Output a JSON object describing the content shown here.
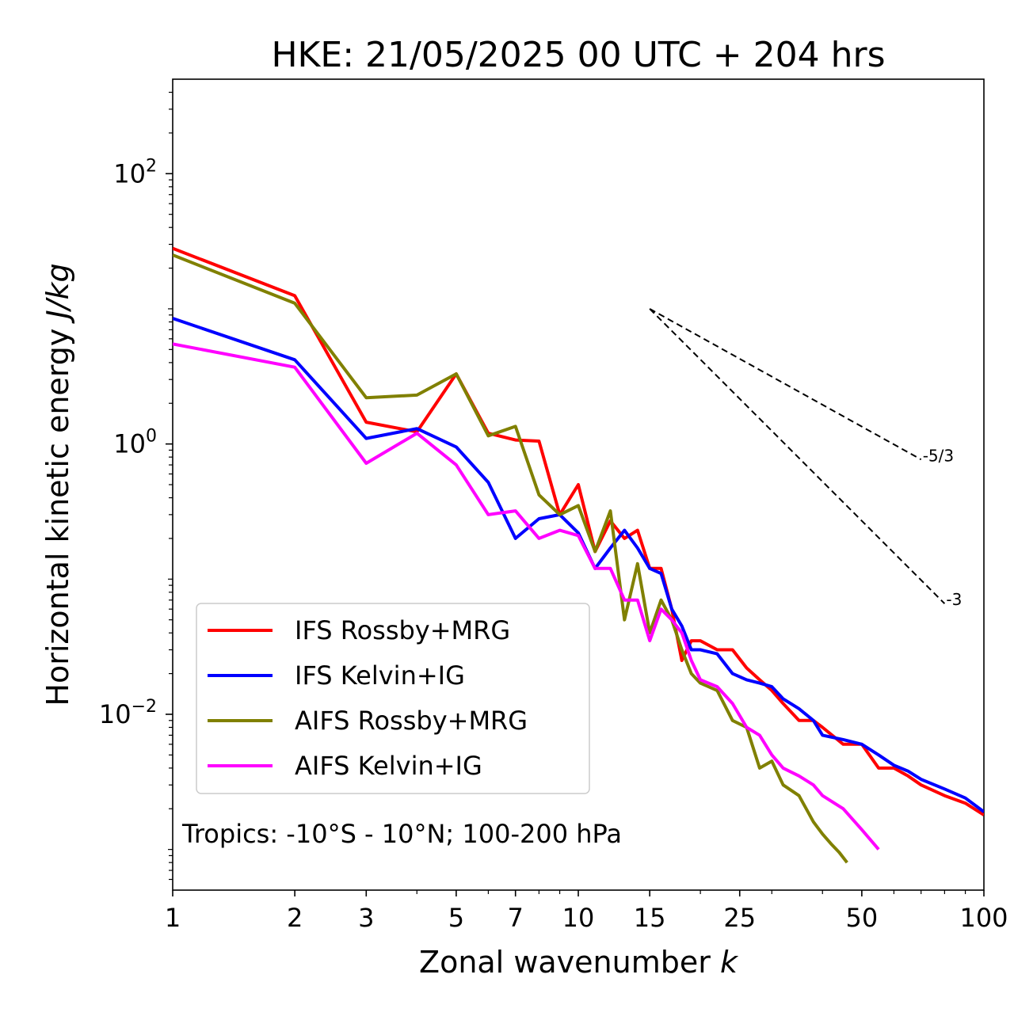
{
  "chart_data": {
    "type": "line",
    "title": "HKE: 21/05/2025 00 UTC + 204 hrs",
    "xlabel": "Zonal wavenumber",
    "xlabel_symbol": "k",
    "ylabel": "Horizontal kinetic energy",
    "ylabel_units": "J/kg",
    "xscale": "log",
    "yscale": "log",
    "xlim": [
      1,
      100
    ],
    "ylim": [
      0.0005,
      500
    ],
    "x_ticks": [
      {
        "value": 1,
        "label": "1"
      },
      {
        "value": 2,
        "label": "2"
      },
      {
        "value": 3,
        "label": "3"
      },
      {
        "value": 5,
        "label": "5"
      },
      {
        "value": 7,
        "label": "7"
      },
      {
        "value": 10,
        "label": "10"
      },
      {
        "value": 15,
        "label": "15"
      },
      {
        "value": 25,
        "label": "25"
      },
      {
        "value": 50,
        "label": "50"
      },
      {
        "value": 100,
        "label": "100"
      }
    ],
    "y_ticks": [
      {
        "value": 0.01,
        "base": "10",
        "exp": "−2"
      },
      {
        "value": 1,
        "base": "10",
        "exp": "0"
      },
      {
        "value": 100,
        "base": "10",
        "exp": "2"
      }
    ],
    "annotation": "Tropics: -10°S - 10°N; 100-200 hPa",
    "legend_position": "lower-left",
    "series": [
      {
        "name": "IFS Rossby+MRG",
        "color": "#ff0000",
        "x": [
          1,
          2,
          3,
          4,
          5,
          6,
          7,
          8,
          9,
          10,
          11,
          12,
          13,
          14,
          15,
          16,
          17,
          18,
          19,
          20,
          22,
          24,
          26,
          28,
          30,
          32,
          35,
          38,
          40,
          45,
          50,
          55,
          60,
          65,
          70,
          80,
          90,
          100
        ],
        "y": [
          28,
          12.5,
          1.45,
          1.23,
          3.3,
          1.2,
          1.07,
          1.05,
          0.3,
          0.5,
          0.16,
          0.27,
          0.2,
          0.23,
          0.12,
          0.12,
          0.06,
          0.025,
          0.035,
          0.035,
          0.03,
          0.03,
          0.022,
          0.018,
          0.015,
          0.012,
          0.009,
          0.009,
          0.008,
          0.006,
          0.006,
          0.004,
          0.004,
          0.0035,
          0.003,
          0.0025,
          0.0022,
          0.0018
        ]
      },
      {
        "name": "IFS Kelvin+IG",
        "color": "#0000ff",
        "x": [
          1,
          2,
          3,
          4,
          5,
          6,
          7,
          8,
          9,
          10,
          11,
          12,
          13,
          14,
          15,
          16,
          17,
          18,
          19,
          20,
          22,
          24,
          26,
          28,
          30,
          32,
          35,
          38,
          40,
          45,
          50,
          55,
          60,
          65,
          70,
          80,
          90,
          100
        ],
        "y": [
          8.5,
          4.2,
          1.1,
          1.3,
          0.95,
          0.52,
          0.2,
          0.28,
          0.3,
          0.22,
          0.12,
          0.17,
          0.23,
          0.17,
          0.12,
          0.11,
          0.06,
          0.045,
          0.03,
          0.03,
          0.028,
          0.02,
          0.018,
          0.017,
          0.016,
          0.013,
          0.011,
          0.009,
          0.007,
          0.0065,
          0.006,
          0.005,
          0.0042,
          0.0038,
          0.0033,
          0.0028,
          0.0024,
          0.0019
        ]
      },
      {
        "name": "AIFS Rossby+MRG",
        "color": "#808000",
        "x": [
          1,
          2,
          3,
          4,
          5,
          6,
          7,
          8,
          9,
          10,
          11,
          12,
          13,
          14,
          15,
          16,
          17,
          18,
          19,
          20,
          22,
          24,
          26,
          28,
          30,
          32,
          35,
          38,
          40,
          42,
          44,
          46
        ],
        "y": [
          25,
          11,
          2.2,
          2.3,
          3.3,
          1.15,
          1.35,
          0.42,
          0.3,
          0.35,
          0.16,
          0.32,
          0.05,
          0.13,
          0.04,
          0.07,
          0.05,
          0.03,
          0.02,
          0.017,
          0.015,
          0.009,
          0.008,
          0.004,
          0.0045,
          0.003,
          0.0025,
          0.0016,
          0.0013,
          0.0011,
          0.00095,
          0.0008
        ]
      },
      {
        "name": "AIFS Kelvin+IG",
        "color": "#ff00ff",
        "x": [
          1,
          2,
          3,
          4,
          5,
          6,
          7,
          8,
          9,
          10,
          11,
          12,
          13,
          14,
          15,
          16,
          17,
          18,
          19,
          20,
          22,
          24,
          26,
          28,
          30,
          32,
          35,
          38,
          40,
          45,
          50,
          55
        ],
        "y": [
          5.5,
          3.7,
          0.72,
          1.2,
          0.7,
          0.3,
          0.32,
          0.2,
          0.23,
          0.21,
          0.12,
          0.12,
          0.07,
          0.07,
          0.035,
          0.06,
          0.05,
          0.04,
          0.025,
          0.018,
          0.016,
          0.012,
          0.008,
          0.007,
          0.005,
          0.004,
          0.0035,
          0.003,
          0.0025,
          0.002,
          0.0014,
          0.001
        ]
      }
    ],
    "reference_lines": [
      {
        "label": "-5/3",
        "slope": -1.6667,
        "x": [
          15,
          70
        ],
        "y0": 10.0
      },
      {
        "label": "-3",
        "slope": -3,
        "x": [
          15,
          80
        ],
        "y0": 10.0
      }
    ]
  }
}
